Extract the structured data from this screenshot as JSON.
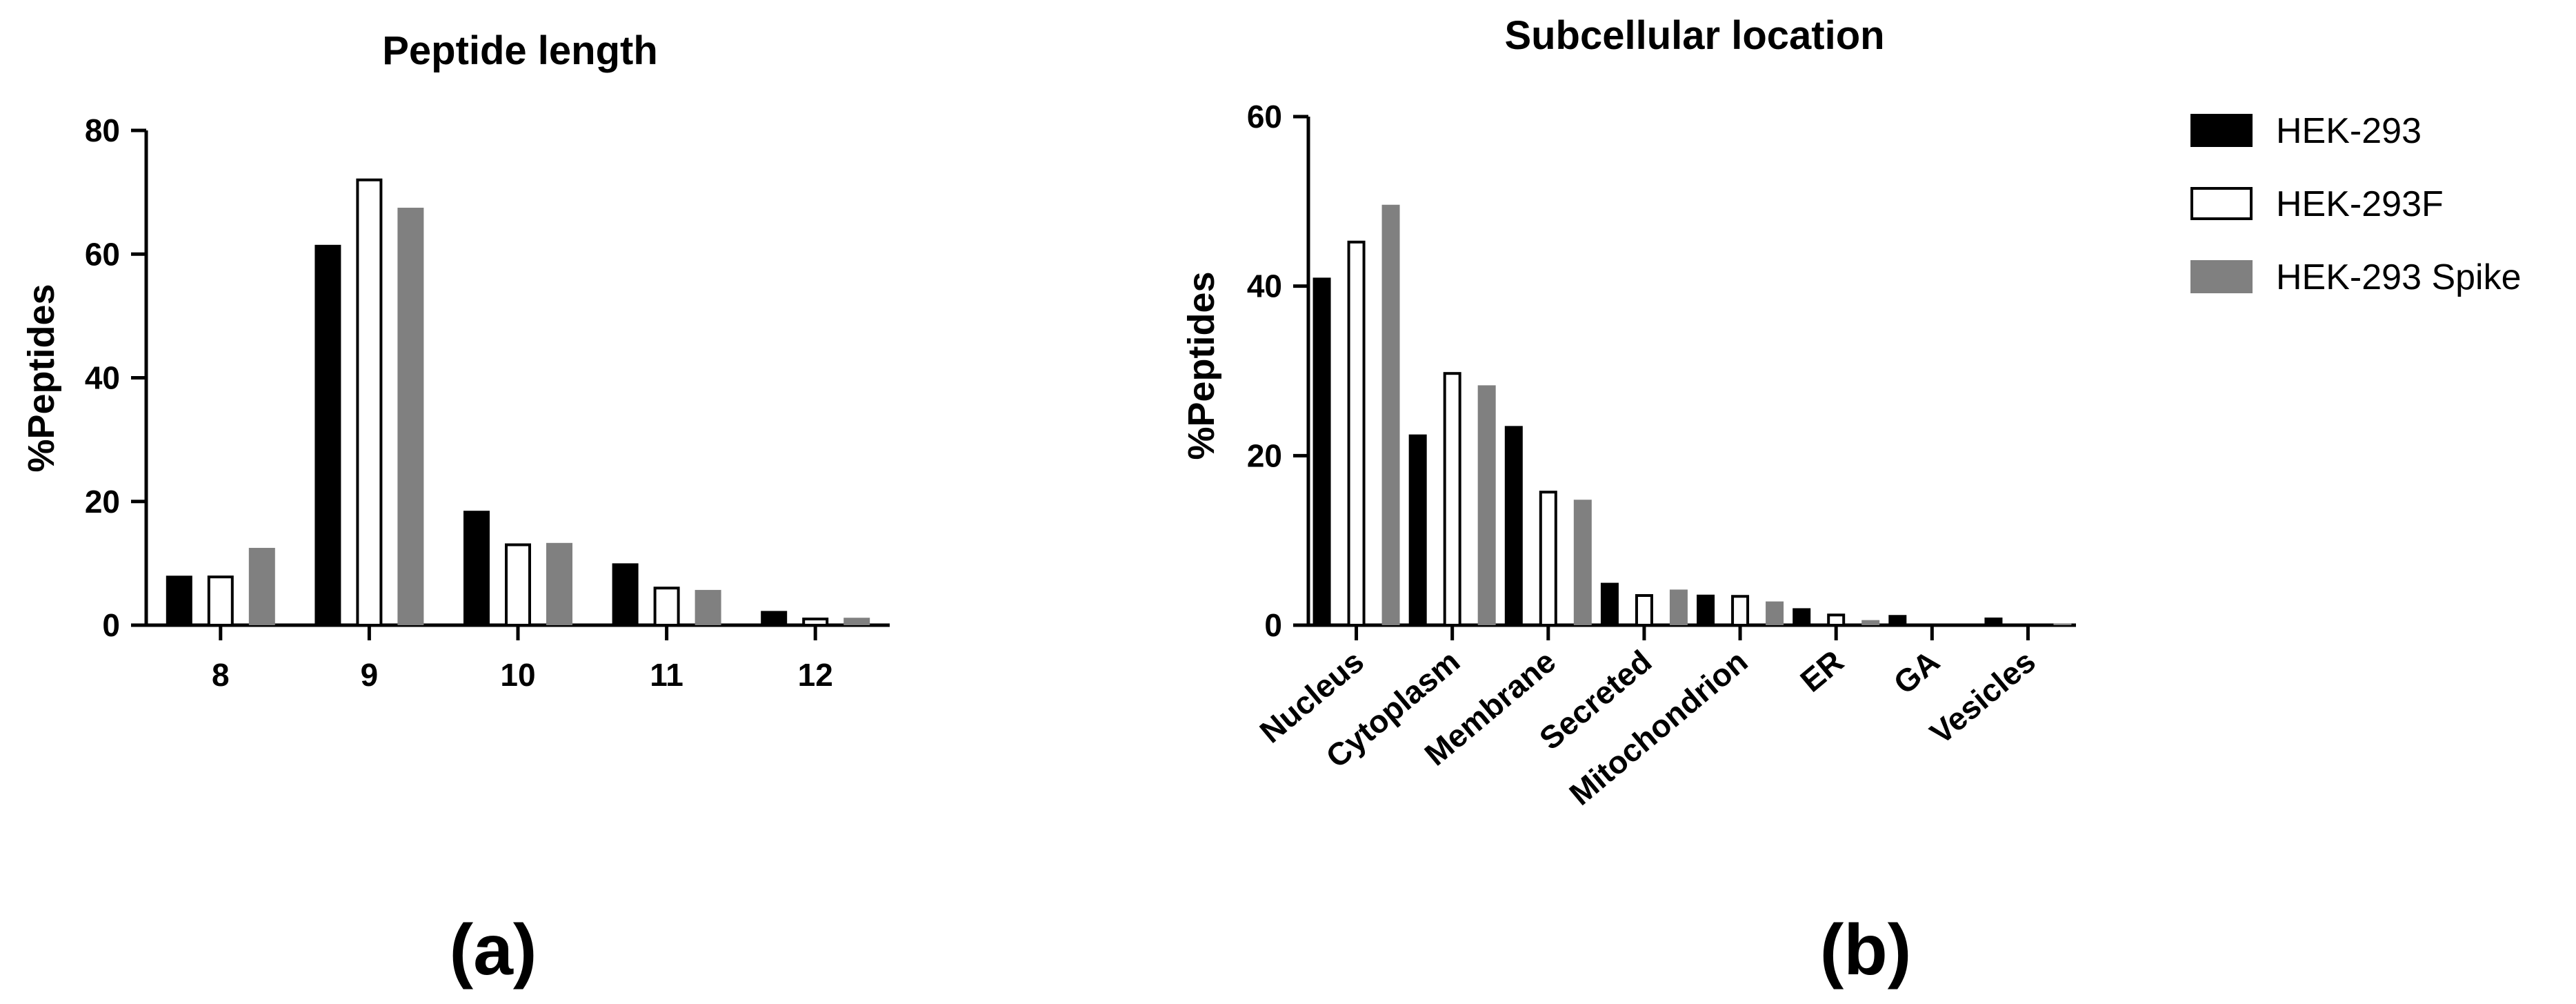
{
  "figure": {
    "panel_a_label": "(a)",
    "panel_b_label": "(b)"
  },
  "legend": {
    "entries": [
      {
        "name": "HEK-293",
        "fill": "#000000",
        "stroke": "#000000"
      },
      {
        "name": "HEK-293F",
        "fill": "#ffffff",
        "stroke": "#000000"
      },
      {
        "name": "HEK-293 Spike",
        "fill": "#808080",
        "stroke": "#808080"
      }
    ]
  },
  "chart_data": [
    {
      "type": "bar",
      "title": "Peptide length",
      "xlabel": "",
      "ylabel": "%Peptides",
      "ylim": [
        0,
        80
      ],
      "yticks": [
        0,
        20,
        40,
        60,
        80
      ],
      "categories": [
        "8",
        "9",
        "10",
        "11",
        "12"
      ],
      "series": [
        {
          "name": "HEK-293",
          "values": [
            8,
            61.5,
            18.5,
            10,
            2.3
          ]
        },
        {
          "name": "HEK-293F",
          "values": [
            7.8,
            72,
            13,
            6,
            1
          ]
        },
        {
          "name": "HEK-293 Spike",
          "values": [
            12.5,
            67.5,
            13.3,
            5.7,
            1.2
          ]
        }
      ]
    },
    {
      "type": "bar",
      "title": "Subcellular location",
      "xlabel": "",
      "ylabel": "%Peptides",
      "ylim": [
        0,
        60
      ],
      "yticks": [
        0,
        20,
        40,
        60
      ],
      "categories": [
        "Nucleus",
        "Cytoplasm",
        "Membrane",
        "Secreted",
        "Mitochondrion",
        "ER",
        "GA",
        "Vesicles"
      ],
      "series": [
        {
          "name": "HEK-293",
          "values": [
            41,
            22.5,
            23.5,
            5,
            3.6,
            2,
            1.2,
            0.9
          ]
        },
        {
          "name": "HEK-293F",
          "values": [
            45.2,
            29.7,
            15.7,
            3.5,
            3.4,
            1.2,
            0,
            0
          ]
        },
        {
          "name": "HEK-293 Spike",
          "values": [
            49.6,
            28.3,
            14.8,
            4.2,
            2.8,
            0.6,
            0,
            0.2
          ]
        }
      ]
    }
  ]
}
